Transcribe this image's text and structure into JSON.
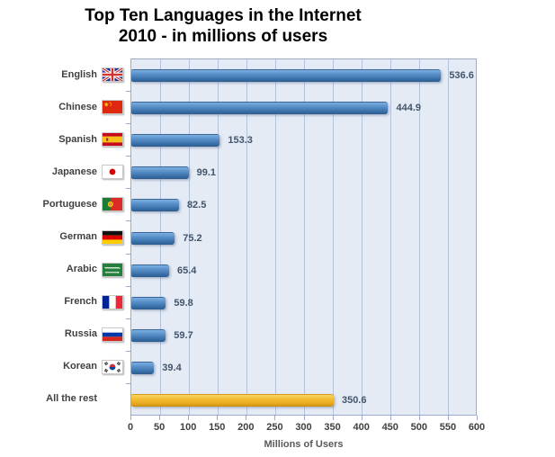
{
  "chart_data": {
    "type": "bar",
    "orientation": "horizontal",
    "title": "Top Ten Languages in the Internet",
    "subtitle": "2010 - in millions of users",
    "xlabel": "Millions of Users",
    "xlim": [
      0,
      600
    ],
    "xticks": [
      0,
      50,
      100,
      150,
      200,
      250,
      300,
      350,
      400,
      450,
      500,
      550,
      600
    ],
    "grid": true,
    "legend": "none",
    "categories": [
      "English",
      "Chinese",
      "Spanish",
      "Japanese",
      "Portuguese",
      "German",
      "Arabic",
      "French",
      "Russia",
      "Korean",
      "All the rest"
    ],
    "values": [
      536.6,
      444.9,
      153.3,
      99.1,
      82.5,
      75.2,
      65.4,
      59.8,
      59.7,
      39.4,
      350.6
    ],
    "value_labels": [
      "536.6",
      "444.9",
      "153.3",
      "99.1",
      "82.5",
      "75.2",
      "65.4",
      "59.8",
      "59.7",
      "39.4",
      "350.6"
    ],
    "flags": [
      "uk-flag-icon",
      "china-flag-icon",
      "spain-flag-icon",
      "japan-flag-icon",
      "portugal-flag-icon",
      "germany-flag-icon",
      "saudi-arabia-flag-icon",
      "france-flag-icon",
      "russia-flag-icon",
      "south-korea-flag-icon",
      null
    ],
    "bar_colors": [
      "blue",
      "blue",
      "blue",
      "blue",
      "blue",
      "blue",
      "blue",
      "blue",
      "blue",
      "blue",
      "gold"
    ],
    "colors": {
      "bar_blue": "#3f78b2",
      "bar_gold": "#f0b42a",
      "plot_bg": "#e4ebf5",
      "gridline": "#b3c2de",
      "plot_border": "#9aabcb",
      "value_label": "#44546a",
      "category_label": "#404040",
      "tick_label": "#404040",
      "axis_title": "#595959",
      "title": "#000000"
    }
  }
}
